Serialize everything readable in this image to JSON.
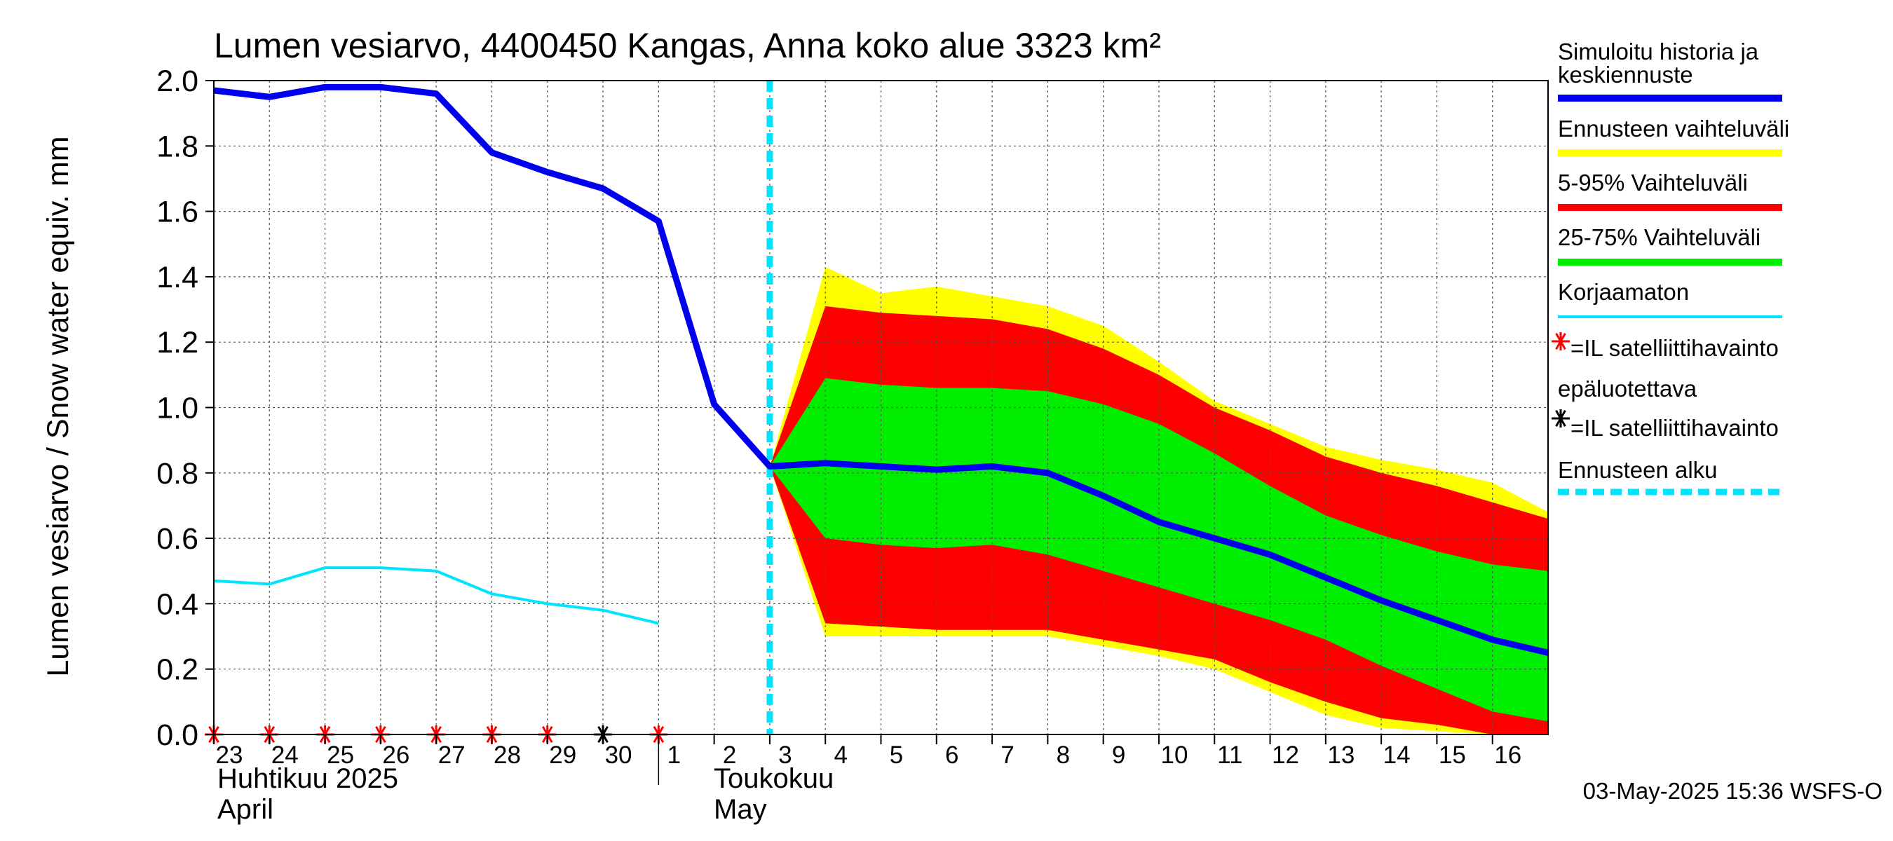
{
  "chart_data": {
    "type": "line",
    "title": "Lumen vesiarvo, 4400450 Kangas, Anna koko alue 3323 km²",
    "ylabel": "Lumen vesiarvo / Snow water equiv.    mm",
    "ylim": [
      0.0,
      2.0
    ],
    "yticks": [
      "0.0",
      "0.2",
      "0.4",
      "0.6",
      "0.8",
      "1.0",
      "1.2",
      "1.4",
      "1.6",
      "1.8",
      "2.0"
    ],
    "xlim": [
      0,
      24
    ],
    "xticks": [
      {
        "x": 0,
        "label": "23"
      },
      {
        "x": 1,
        "label": "24"
      },
      {
        "x": 2,
        "label": "25"
      },
      {
        "x": 3,
        "label": "26"
      },
      {
        "x": 4,
        "label": "27"
      },
      {
        "x": 5,
        "label": "28"
      },
      {
        "x": 6,
        "label": "29"
      },
      {
        "x": 7,
        "label": "30"
      },
      {
        "x": 8,
        "label": "1"
      },
      {
        "x": 9,
        "label": "2"
      },
      {
        "x": 10,
        "label": "3"
      },
      {
        "x": 11,
        "label": "4"
      },
      {
        "x": 12,
        "label": "5"
      },
      {
        "x": 13,
        "label": "6"
      },
      {
        "x": 14,
        "label": "7"
      },
      {
        "x": 15,
        "label": "8"
      },
      {
        "x": 16,
        "label": "9"
      },
      {
        "x": 17,
        "label": "10"
      },
      {
        "x": 18,
        "label": "11"
      },
      {
        "x": 19,
        "label": "12"
      },
      {
        "x": 20,
        "label": "13"
      },
      {
        "x": 21,
        "label": "14"
      },
      {
        "x": 22,
        "label": "15"
      },
      {
        "x": 23,
        "label": "16"
      }
    ],
    "month_labels": {
      "april_fi": "Huhtikuu  2025",
      "april_en": "April",
      "may_fi": "Toukokuu",
      "may_en": "May"
    },
    "forecast_start_x": 10,
    "series": [
      {
        "name": "Simuloitu historia ja keskiennuste",
        "color": "#0000ee",
        "x": [
          0,
          1,
          2,
          3,
          4,
          5,
          6,
          7,
          8,
          9,
          10,
          11,
          12,
          13,
          14,
          15,
          16,
          17,
          18,
          19,
          20,
          21,
          22,
          23,
          24
        ],
        "y": [
          1.97,
          1.95,
          1.98,
          1.98,
          1.96,
          1.78,
          1.72,
          1.67,
          1.57,
          1.01,
          0.82,
          0.83,
          0.82,
          0.81,
          0.82,
          0.8,
          0.73,
          0.65,
          0.6,
          0.55,
          0.48,
          0.41,
          0.35,
          0.29,
          0.25
        ]
      },
      {
        "name": "Korjaamaton",
        "color": "#00e5ff",
        "x": [
          0,
          1,
          2,
          3,
          4,
          5,
          6,
          7,
          8
        ],
        "y": [
          0.47,
          0.46,
          0.51,
          0.51,
          0.5,
          0.43,
          0.4,
          0.38,
          0.34
        ]
      }
    ],
    "bands": [
      {
        "name": "Ennusteen vaihteluväli",
        "color": "#ffff00",
        "x": [
          10,
          11,
          12,
          13,
          14,
          15,
          16,
          17,
          18,
          19,
          20,
          21,
          22,
          23,
          24
        ],
        "upper": [
          0.82,
          1.43,
          1.35,
          1.37,
          1.34,
          1.31,
          1.25,
          1.14,
          1.02,
          0.95,
          0.88,
          0.84,
          0.81,
          0.77,
          0.68
        ],
        "lower": [
          0.82,
          0.3,
          0.3,
          0.3,
          0.3,
          0.3,
          0.27,
          0.24,
          0.2,
          0.13,
          0.06,
          0.02,
          0.01,
          -0.01,
          -0.02
        ]
      },
      {
        "name": "5-95% Vaihteluväli",
        "color": "#ff0000",
        "x": [
          10,
          11,
          12,
          13,
          14,
          15,
          16,
          17,
          18,
          19,
          20,
          21,
          22,
          23,
          24
        ],
        "upper": [
          0.82,
          1.31,
          1.29,
          1.28,
          1.27,
          1.24,
          1.18,
          1.1,
          1.0,
          0.93,
          0.85,
          0.8,
          0.76,
          0.71,
          0.66
        ],
        "lower": [
          0.82,
          0.34,
          0.33,
          0.32,
          0.32,
          0.32,
          0.29,
          0.26,
          0.23,
          0.16,
          0.1,
          0.05,
          0.03,
          0.0,
          0.0
        ]
      },
      {
        "name": "25-75% Vaihteluväli",
        "color": "#00ee00",
        "x": [
          10,
          11,
          12,
          13,
          14,
          15,
          16,
          17,
          18,
          19,
          20,
          21,
          22,
          23,
          24
        ],
        "upper": [
          0.82,
          1.09,
          1.07,
          1.06,
          1.06,
          1.05,
          1.01,
          0.95,
          0.86,
          0.76,
          0.67,
          0.61,
          0.56,
          0.52,
          0.5
        ],
        "lower": [
          0.82,
          0.6,
          0.58,
          0.57,
          0.58,
          0.55,
          0.5,
          0.45,
          0.4,
          0.35,
          0.29,
          0.21,
          0.14,
          0.07,
          0.04
        ]
      }
    ],
    "observations": [
      {
        "x": 0,
        "y": 0.0,
        "kind": "red"
      },
      {
        "x": 1,
        "y": 0.0,
        "kind": "red"
      },
      {
        "x": 2,
        "y": 0.0,
        "kind": "red"
      },
      {
        "x": 3,
        "y": 0.0,
        "kind": "red"
      },
      {
        "x": 4,
        "y": 0.0,
        "kind": "red"
      },
      {
        "x": 5,
        "y": 0.0,
        "kind": "red"
      },
      {
        "x": 6,
        "y": 0.0,
        "kind": "red"
      },
      {
        "x": 7,
        "y": 0.0,
        "kind": "black"
      },
      {
        "x": 8,
        "y": 0.0,
        "kind": "red"
      }
    ],
    "legend": {
      "placement": "right",
      "items": [
        {
          "label_lines": [
            "Simuloitu historia ja",
            "keskiennuste"
          ],
          "type": "line",
          "color": "#0000ee"
        },
        {
          "label_lines": [
            "Ennusteen vaihteluväli"
          ],
          "type": "line",
          "color": "#ffff00"
        },
        {
          "label_lines": [
            "5-95% Vaihteluväli"
          ],
          "type": "line",
          "color": "#ff0000"
        },
        {
          "label_lines": [
            "25-75% Vaihteluväli"
          ],
          "type": "line",
          "color": "#00ee00"
        },
        {
          "label_lines": [
            "Korjaamaton"
          ],
          "type": "thin-line",
          "color": "#00e5ff"
        },
        {
          "label_lines": [
            "=IL satelliittihavainto"
          ],
          "type": "red-star",
          "color": "#ff0000"
        },
        {
          "label_lines": [
            "epäluotettava",
            "=IL satelliittihavainto"
          ],
          "type": "black-star",
          "color": "#000000"
        },
        {
          "label_lines": [
            "Ennusteen alku"
          ],
          "type": "dashed-line",
          "color": "#00e5ff"
        }
      ]
    },
    "timestamp": "03-May-2025 15:36 WSFS-O",
    "grid": true
  }
}
